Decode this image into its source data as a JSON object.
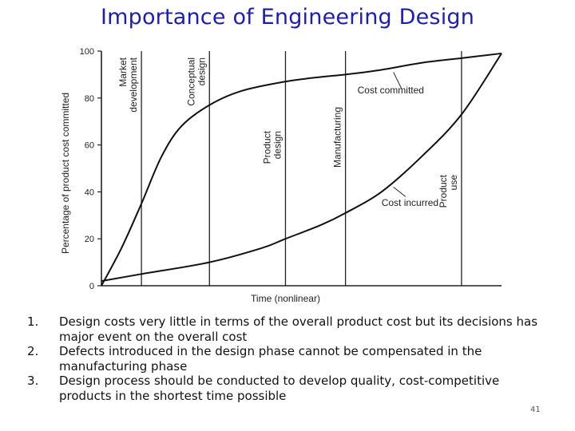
{
  "slide": {
    "title": "Importance of Engineering Design",
    "slide_number": "41",
    "bullets": [
      {
        "num": "1.",
        "text": "Design costs very little in terms of the overall product cost but its decisions has major event on the overall cost"
      },
      {
        "num": "2.",
        "text": "Defects introduced in the design phase cannot be compensated in the manufacturing phase"
      },
      {
        "num": "3.",
        "text": "Design process should be conducted to develop quality, cost-competitive products in the shortest time possible"
      }
    ]
  },
  "chart_data": {
    "type": "line",
    "xlabel": "Time (nonlinear)",
    "ylabel": "Percentage of product cost committed",
    "ylim": [
      0,
      100
    ],
    "xlim": [
      0,
      100
    ],
    "yticks": [
      0,
      20,
      40,
      60,
      80,
      100
    ],
    "grid": false,
    "phases": [
      {
        "x": 10,
        "label": "Market development"
      },
      {
        "x": 27,
        "label": "Conceptual design"
      },
      {
        "x": 46,
        "label": "Product design"
      },
      {
        "x": 61,
        "label": "Manufacturing"
      },
      {
        "x": 90,
        "label": "Product use"
      }
    ],
    "series": [
      {
        "name": "Cost committed",
        "x": [
          0,
          5,
          10,
          15,
          20,
          27,
          35,
          46,
          55,
          61,
          70,
          80,
          90,
          100
        ],
        "y": [
          0,
          16,
          35,
          55,
          68,
          77,
          83,
          87,
          89,
          90,
          92,
          95,
          97,
          99
        ]
      },
      {
        "name": "Cost incurred",
        "x": [
          0,
          10,
          27,
          40,
          46,
          55,
          61,
          70,
          80,
          90,
          100
        ],
        "y": [
          2,
          5,
          10,
          16,
          20,
          26,
          31,
          40,
          55,
          73,
          99
        ]
      }
    ]
  }
}
